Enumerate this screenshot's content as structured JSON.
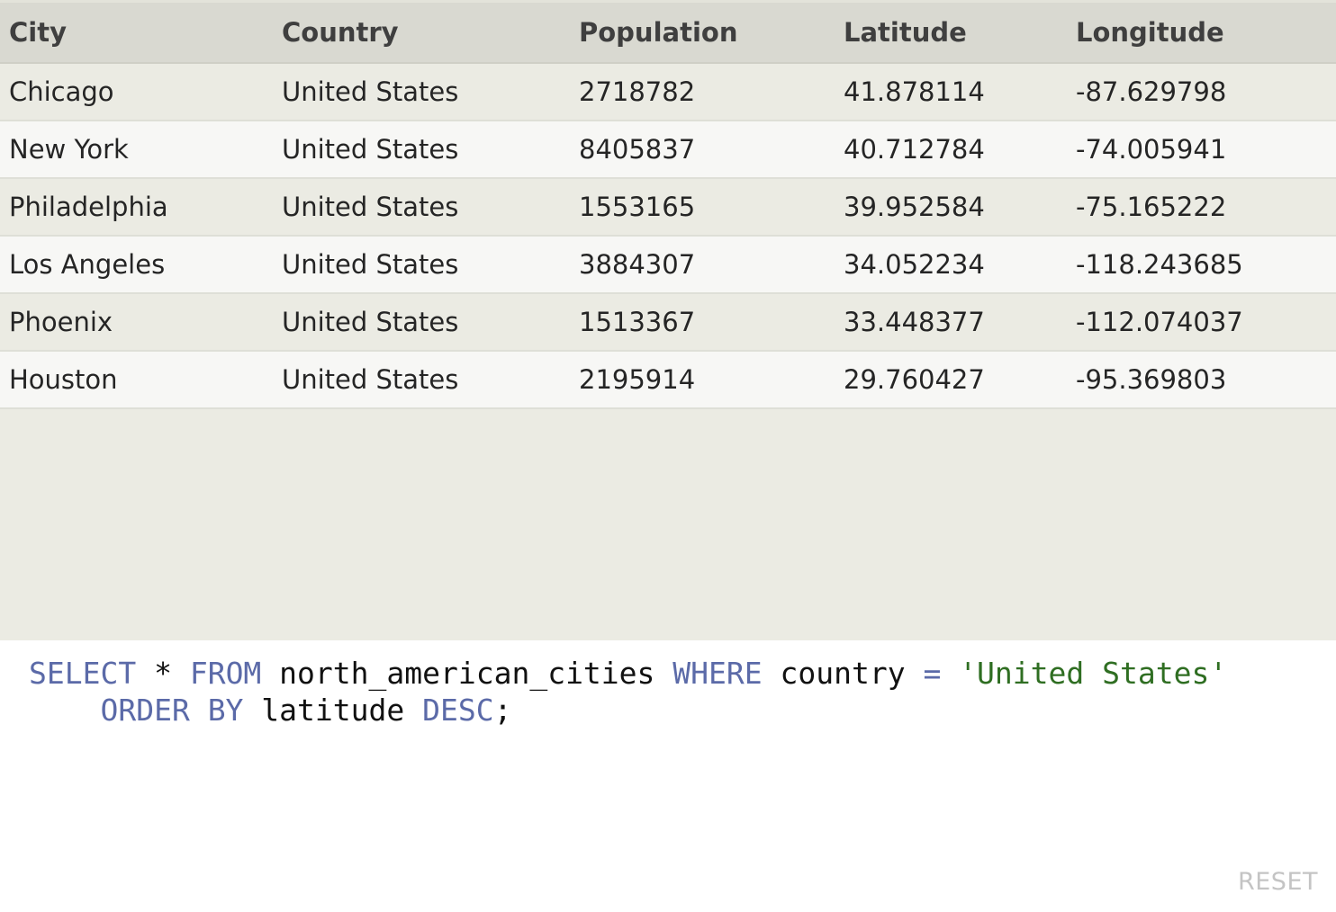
{
  "table": {
    "columns": [
      "City",
      "Country",
      "Population",
      "Latitude",
      "Longitude"
    ],
    "rows": [
      [
        "Chicago",
        "United States",
        "2718782",
        "41.878114",
        "-87.629798"
      ],
      [
        "New York",
        "United States",
        "8405837",
        "40.712784",
        "-74.005941"
      ],
      [
        "Philadelphia",
        "United States",
        "1553165",
        "39.952584",
        "-75.165222"
      ],
      [
        "Los Angeles",
        "United States",
        "3884307",
        "34.052234",
        "-118.243685"
      ],
      [
        "Phoenix",
        "United States",
        "1513367",
        "33.448377",
        "-112.074037"
      ],
      [
        "Houston",
        "United States",
        "2195914",
        "29.760427",
        "-95.369803"
      ]
    ]
  },
  "query": {
    "tokens": [
      {
        "t": "SELECT",
        "k": "kw"
      },
      {
        "t": " * ",
        "k": "plain"
      },
      {
        "t": "FROM",
        "k": "kw"
      },
      {
        "t": " north_american_cities ",
        "k": "plain"
      },
      {
        "t": "WHERE",
        "k": "kw"
      },
      {
        "t": " country ",
        "k": "plain"
      },
      {
        "t": "=",
        "k": "kw"
      },
      {
        "t": " ",
        "k": "plain"
      },
      {
        "t": "'United States'",
        "k": "str"
      },
      {
        "t": "\n    ",
        "k": "plain"
      },
      {
        "t": "ORDER BY",
        "k": "kw"
      },
      {
        "t": " latitude ",
        "k": "plain"
      },
      {
        "t": "DESC",
        "k": "kw"
      },
      {
        "t": ";",
        "k": "plain"
      }
    ]
  },
  "controls": {
    "reset_label": "RESET"
  },
  "colors": {
    "keyword": "#5b6aa8",
    "string": "#2f6e22",
    "header_bg": "#d9d9d1",
    "row_odd": "#ebebe3",
    "row_even": "#f7f7f5"
  }
}
